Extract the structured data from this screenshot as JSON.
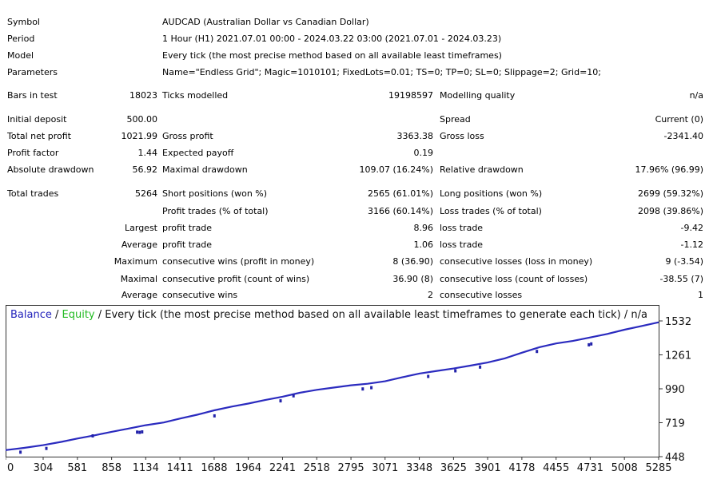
{
  "report": {
    "header_rows": [
      {
        "label": "Symbol",
        "value": "AUDCAD (Australian Dollar vs Canadian Dollar)"
      },
      {
        "label": "Period",
        "value": "1 Hour (H1) 2021.07.01 00:00 - 2024.03.22 03:00 (2021.07.01 - 2024.03.23)"
      },
      {
        "label": "Model",
        "value": "Every tick (the most precise method based on all available least timeframes)"
      },
      {
        "label": "Parameters",
        "value": "Name=\"Endless Grid\"; Magic=1010101; FixedLots=0.01; TS=0; TP=0; SL=0; Slippage=2; Grid=10;"
      }
    ],
    "bars_in_test": {
      "label": "Bars in test",
      "value": "18023"
    },
    "ticks_modelled": {
      "label": "Ticks modelled",
      "value": "19198597"
    },
    "modelling_quality": {
      "label": "Modelling quality",
      "value": "n/a"
    },
    "initial_deposit": {
      "label": "Initial deposit",
      "value": "500.00"
    },
    "spread": {
      "label": "Spread",
      "value": "Current (0)"
    },
    "total_net_profit": {
      "label": "Total net profit",
      "value": "1021.99"
    },
    "gross_profit": {
      "label": "Gross profit",
      "value": "3363.38"
    },
    "gross_loss": {
      "label": "Gross loss",
      "value": "-2341.40"
    },
    "profit_factor": {
      "label": "Profit factor",
      "value": "1.44"
    },
    "expected_payoff": {
      "label": "Expected payoff",
      "value": "0.19"
    },
    "absolute_drawdown": {
      "label": "Absolute drawdown",
      "value": "56.92"
    },
    "maximal_drawdown": {
      "label": "Maximal drawdown",
      "value": "109.07 (16.24%)"
    },
    "relative_drawdown": {
      "label": "Relative drawdown",
      "value": "17.96% (96.99)"
    },
    "total_trades": {
      "label": "Total trades",
      "value": "5264"
    },
    "short_positions": {
      "label": "Short positions (won %)",
      "value": "2565 (61.01%)"
    },
    "long_positions": {
      "label": "Long positions (won %)",
      "value": "2699 (59.32%)"
    },
    "profit_trades": {
      "label": "Profit trades (% of total)",
      "value": "3166 (60.14%)"
    },
    "loss_trades": {
      "label": "Loss trades (% of total)",
      "value": "2098 (39.86%)"
    },
    "detail_rows": [
      {
        "prefix": "Largest",
        "profit_label": "profit trade",
        "profit_value": "8.96",
        "loss_label": "loss trade",
        "loss_value": "-9.42"
      },
      {
        "prefix": "Average",
        "profit_label": "profit trade",
        "profit_value": "1.06",
        "loss_label": "loss trade",
        "loss_value": "-1.12"
      },
      {
        "prefix": "Maximum",
        "profit_label": "consecutive wins (profit in money)",
        "profit_value": "8 (36.90)",
        "loss_label": "consecutive losses (loss in money)",
        "loss_value": "9 (-3.54)"
      },
      {
        "prefix": "Maximal",
        "profit_label": "consecutive profit (count of wins)",
        "profit_value": "36.90 (8)",
        "loss_label": "consecutive loss (count of losses)",
        "loss_value": "-38.55 (7)"
      },
      {
        "prefix": "Average",
        "profit_label": "consecutive wins",
        "profit_value": "2",
        "loss_label": "consecutive losses",
        "loss_value": "1"
      }
    ]
  },
  "chart_data": {
    "type": "line",
    "title_parts": {
      "balance": "Balance",
      "sep1": " / ",
      "equity": "Equity",
      "rest": " / Every tick (the most precise method based on all available least timeframes to generate each tick) / n/a"
    },
    "x_ticks": [
      0,
      304,
      581,
      858,
      1134,
      1411,
      1688,
      1964,
      2241,
      2518,
      2795,
      3071,
      3348,
      3625,
      3901,
      4178,
      4455,
      4731,
      5008,
      5285
    ],
    "y_ticks": [
      448,
      719,
      990,
      1261,
      1532
    ],
    "xlim": [
      0,
      5285
    ],
    "ylim": [
      448,
      1532
    ],
    "series": [
      {
        "name": "Balance",
        "color": "#2b2bbf",
        "x": [
          0,
          150,
          304,
          450,
          581,
          720,
          858,
          1000,
          1134,
          1280,
          1411,
          1550,
          1688,
          1830,
          1964,
          2100,
          2241,
          2380,
          2518,
          2660,
          2795,
          2930,
          3071,
          3210,
          3348,
          3490,
          3625,
          3760,
          3901,
          4040,
          4178,
          4320,
          4455,
          4590,
          4731,
          4870,
          5008,
          5150,
          5285
        ],
        "y": [
          500,
          518,
          540,
          566,
          593,
          618,
          646,
          673,
          699,
          721,
          752,
          783,
          818,
          848,
          872,
          900,
          927,
          958,
          982,
          1000,
          1018,
          1030,
          1050,
          1082,
          1112,
          1133,
          1152,
          1175,
          1200,
          1233,
          1278,
          1322,
          1352,
          1372,
          1400,
          1428,
          1462,
          1492,
          1521
        ]
      },
      {
        "name": "Equity",
        "color": "#2222aa",
        "x": [
          120,
          330,
          705,
          1065,
          1085,
          1105,
          1690,
          2225,
          2330,
          2890,
          2960,
          3420,
          3640,
          3840,
          4300,
          4720,
          4740
        ],
        "y": [
          490,
          520,
          620,
          650,
          648,
          652,
          780,
          900,
          940,
          995,
          1005,
          1095,
          1140,
          1170,
          1295,
          1348,
          1355
        ]
      }
    ]
  }
}
